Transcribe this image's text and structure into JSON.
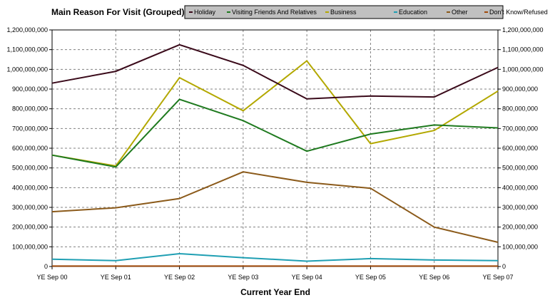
{
  "chart_data": {
    "type": "line",
    "title": "Main Reason For Visit (Grouped)",
    "xlabel": "Current Year End",
    "ylabel": "",
    "categories": [
      "YE Sep 00",
      "YE Sep 01",
      "YE Sep 02",
      "YE Sep 03",
      "YE Sep 04",
      "YE Sep 05",
      "YE Sep 06",
      "YE Sep 07"
    ],
    "ylim": [
      0,
      1200000000
    ],
    "y_ticks": [
      0,
      100000000,
      200000000,
      300000000,
      400000000,
      500000000,
      600000000,
      700000000,
      800000000,
      900000000,
      1000000000,
      1100000000,
      1200000000
    ],
    "y_tick_labels": [
      "0",
      "100,000,000",
      "200,000,000",
      "300,000,000",
      "400,000,000",
      "500,000,000",
      "600,000,000",
      "700,000,000",
      "800,000,000",
      "900,000,000",
      "1,000,000,000",
      "1,100,000,000",
      "1,200,000,000"
    ],
    "grid": true,
    "dual_y_axis": true,
    "legend_position": "top",
    "series": [
      {
        "name": "Holiday",
        "color": "#3a0a1a",
        "values": [
          930000000,
          990000000,
          1125000000,
          1020000000,
          850000000,
          865000000,
          860000000,
          1010000000
        ]
      },
      {
        "name": "Visiting Friends And Relatives",
        "color": "#1f7a1f",
        "values": [
          565000000,
          505000000,
          848000000,
          740000000,
          585000000,
          672000000,
          718000000,
          703000000
        ]
      },
      {
        "name": "Business",
        "color": "#b3a800",
        "values": [
          565000000,
          510000000,
          958000000,
          790000000,
          1043000000,
          623000000,
          690000000,
          890000000
        ]
      },
      {
        "name": "Education",
        "color": "#1f9fb3",
        "values": [
          37000000,
          30000000,
          65000000,
          45000000,
          27000000,
          40000000,
          33000000,
          30000000
        ]
      },
      {
        "name": "Other",
        "color": "#8b5a1a",
        "values": [
          278000000,
          298000000,
          345000000,
          480000000,
          427000000,
          397000000,
          200000000,
          123000000
        ]
      },
      {
        "name": "Don't Know/Refused",
        "color": "#a04a0a",
        "values": [
          2000000,
          2000000,
          2000000,
          2000000,
          2000000,
          2000000,
          2000000,
          2000000
        ]
      }
    ]
  }
}
